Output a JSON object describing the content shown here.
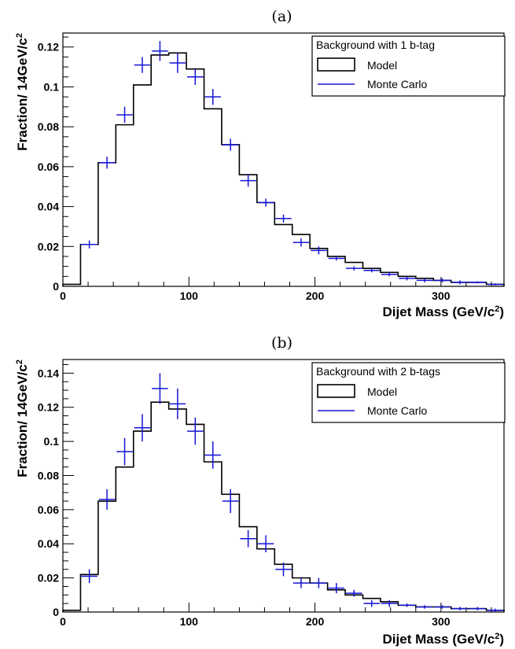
{
  "chart_data": [
    {
      "panel": "(a)",
      "type": "histogram",
      "xlabel": "Dijet Mass (GeV/c",
      "xlabel_sup": "2",
      "xlabel_end": ")",
      "ylabel": "Fraction/ 14GeV/c",
      "ylabel_sup": "2",
      "xlim": [
        0,
        350
      ],
      "ylim": [
        0,
        0.127
      ],
      "xticks": [
        0,
        100,
        200,
        300
      ],
      "yticks": [
        0,
        0.02,
        0.04,
        0.06,
        0.08,
        0.1,
        0.12
      ],
      "ytick_labels": [
        "0",
        "0.02",
        "0.04",
        "0.06",
        "0.08",
        "0.1",
        "0.12"
      ],
      "legend": {
        "title": "Background with 1 b-tag",
        "position": "top-right",
        "entries": [
          "Model",
          "Monte Carlo"
        ]
      },
      "bin_edges": [
        0,
        14,
        28,
        42,
        56,
        70,
        84,
        98,
        112,
        126,
        140,
        154,
        168,
        182,
        196,
        210,
        224,
        238,
        252,
        266,
        280,
        294,
        308,
        322,
        336,
        350
      ],
      "series": [
        {
          "name": "Model",
          "style": "step",
          "color": "#000000",
          "values": [
            0.001,
            0.021,
            0.062,
            0.081,
            0.101,
            0.116,
            0.117,
            0.109,
            0.089,
            0.071,
            0.056,
            0.042,
            0.031,
            0.026,
            0.019,
            0.015,
            0.012,
            0.009,
            0.007,
            0.005,
            0.004,
            0.003,
            0.002,
            0.002,
            0.001
          ]
        },
        {
          "name": "Monte Carlo",
          "style": "crosses",
          "color": "#1414d6",
          "values": [
            0.0,
            0.021,
            0.062,
            0.086,
            0.111,
            0.118,
            0.112,
            0.105,
            0.095,
            0.071,
            0.053,
            0.042,
            0.034,
            0.022,
            0.018,
            0.014,
            0.009,
            0.008,
            0.006,
            0.004,
            0.003,
            0.003,
            0.002,
            0.002,
            0.001
          ],
          "errors": [
            0.0,
            0.002,
            0.003,
            0.004,
            0.004,
            0.005,
            0.005,
            0.004,
            0.004,
            0.003,
            0.003,
            0.002,
            0.002,
            0.002,
            0.002,
            0.001,
            0.001,
            0.001,
            0.001,
            0.001,
            0.001,
            0.001,
            0.001,
            0.0005,
            0.0005
          ]
        }
      ]
    },
    {
      "panel": "(b)",
      "type": "histogram",
      "xlabel": "Dijet Mass (GeV/c",
      "xlabel_sup": "2",
      "xlabel_end": ")",
      "ylabel": "Fraction/ 14GeV/c",
      "ylabel_sup": "2",
      "xlim": [
        0,
        350
      ],
      "ylim": [
        0,
        0.148
      ],
      "xticks": [
        0,
        100,
        200,
        300
      ],
      "yticks": [
        0,
        0.02,
        0.04,
        0.06,
        0.08,
        0.1,
        0.12,
        0.14
      ],
      "ytick_labels": [
        "0",
        "0.02",
        "0.04",
        "0.06",
        "0.08",
        "0.1",
        "0.12",
        "0.14"
      ],
      "legend": {
        "title": "Background with 2 b-tags",
        "position": "top-right",
        "entries": [
          "Model",
          "Monte Carlo"
        ]
      },
      "bin_edges": [
        0,
        14,
        28,
        42,
        56,
        70,
        84,
        98,
        112,
        126,
        140,
        154,
        168,
        182,
        196,
        210,
        224,
        238,
        252,
        266,
        280,
        294,
        308,
        322,
        336,
        350
      ],
      "series": [
        {
          "name": "Model",
          "style": "step",
          "color": "#000000",
          "values": [
            0.001,
            0.022,
            0.065,
            0.085,
            0.106,
            0.123,
            0.119,
            0.11,
            0.088,
            0.069,
            0.05,
            0.037,
            0.028,
            0.02,
            0.017,
            0.013,
            0.01,
            0.008,
            0.006,
            0.004,
            0.003,
            0.003,
            0.002,
            0.002,
            0.001
          ]
        },
        {
          "name": "Monte Carlo",
          "style": "crosses",
          "color": "#1414d6",
          "values": [
            0.0,
            0.021,
            0.066,
            0.094,
            0.108,
            0.131,
            0.122,
            0.106,
            0.092,
            0.065,
            0.043,
            0.04,
            0.025,
            0.017,
            0.017,
            0.014,
            0.011,
            0.005,
            0.005,
            0.004,
            0.003,
            0.003,
            0.002,
            0.002,
            0.001
          ],
          "errors": [
            0.0,
            0.004,
            0.006,
            0.008,
            0.008,
            0.009,
            0.009,
            0.008,
            0.008,
            0.007,
            0.005,
            0.005,
            0.004,
            0.003,
            0.003,
            0.003,
            0.002,
            0.002,
            0.002,
            0.001,
            0.001,
            0.001,
            0.001,
            0.001,
            0.001
          ]
        }
      ]
    }
  ]
}
